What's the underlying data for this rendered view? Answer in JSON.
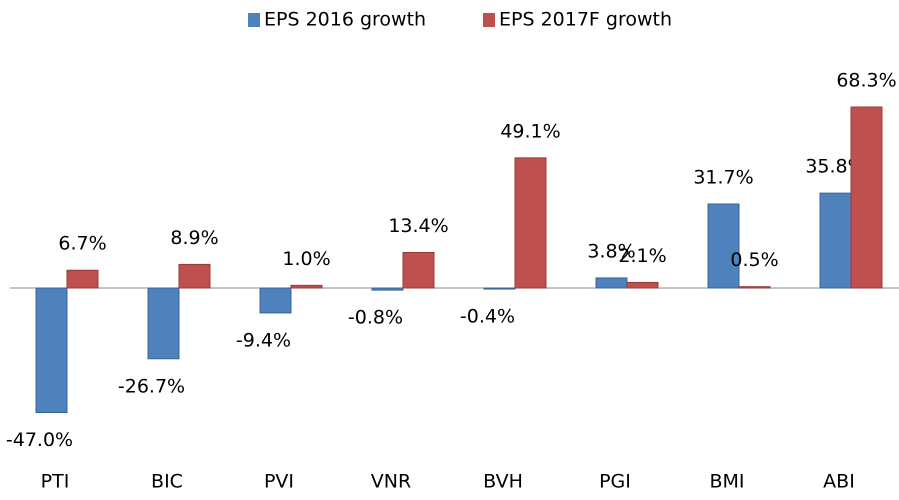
{
  "chart_data": {
    "type": "bar",
    "categories": [
      "PTI",
      "BIC",
      "PVI",
      "VNR",
      "BVH",
      "PGI",
      "BMI",
      "ABI"
    ],
    "series": [
      {
        "name": "EPS 2016 growth",
        "color": "#4f81bd",
        "values": [
          -47.0,
          -26.7,
          -9.4,
          -0.8,
          -0.4,
          3.8,
          31.7,
          35.8
        ],
        "value_labels": [
          "-47.0%",
          "-26.7%",
          "-9.4%",
          "-0.8%",
          "-0.4%",
          "3.8%",
          "31.7%",
          "35.8%"
        ]
      },
      {
        "name": "EPS 2017F growth",
        "color": "#c0504d",
        "values": [
          6.7,
          8.9,
          1.0,
          13.4,
          49.1,
          2.1,
          0.5,
          68.3
        ],
        "value_labels": [
          "6.7%",
          "8.9%",
          "1.0%",
          "13.4%",
          "49.1%",
          "2.1%",
          "0.5%",
          "68.3%"
        ]
      }
    ],
    "legend": "top"
  }
}
